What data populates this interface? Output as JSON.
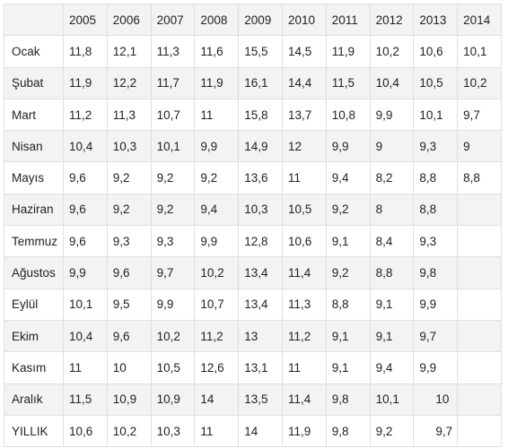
{
  "table": {
    "columns": [
      "",
      "2005",
      "2006",
      "2007",
      "2008",
      "2009",
      "2010",
      "2011",
      "2012",
      "2013",
      "2014"
    ],
    "rows": [
      {
        "month": "Ocak",
        "values": [
          "11,8",
          "12,1",
          "11,3",
          "11,6",
          "15,5",
          "14,5",
          "11,9",
          "10,2",
          "10,6",
          "10,1"
        ]
      },
      {
        "month": "Şubat",
        "values": [
          "11,9",
          "12,2",
          "11,7",
          "11,9",
          "16,1",
          "14,4",
          "11,5",
          "10,4",
          "10,5",
          "10,2"
        ]
      },
      {
        "month": "Mart",
        "values": [
          "11,2",
          "11,3",
          "10,7",
          "11",
          "15,8",
          "13,7",
          "10,8",
          "9,9",
          "10,1",
          "9,7"
        ]
      },
      {
        "month": "Nisan",
        "values": [
          "10,4",
          "10,3",
          "10,1",
          "9,9",
          "14,9",
          "12",
          "9,9",
          "9",
          "9,3",
          "9"
        ]
      },
      {
        "month": "Mayıs",
        "values": [
          "9,6",
          "9,2",
          "9,2",
          "9,2",
          "13,6",
          "11",
          "9,4",
          "8,2",
          "8,8",
          "8,8"
        ]
      },
      {
        "month": "Haziran",
        "values": [
          "9,6",
          "9,2",
          "9,2",
          "9,4",
          "10,3",
          "10,5",
          "9,2",
          "8",
          "8,8",
          ""
        ]
      },
      {
        "month": "Temmuz",
        "values": [
          "9,6",
          "9,3",
          "9,3",
          "9,9",
          "12,8",
          "10,6",
          "9,1",
          "8,4",
          "9,3",
          ""
        ]
      },
      {
        "month": "Ağustos",
        "values": [
          "9,9",
          "9,6",
          "9,7",
          "10,2",
          "13,4",
          "11,4",
          "9,2",
          "8,8",
          "9,8",
          ""
        ]
      },
      {
        "month": "Eylül",
        "values": [
          "10,1",
          "9,5",
          "9,9",
          "10,7",
          "13,4",
          "11,3",
          "8,8",
          "9,1",
          "9,9",
          ""
        ]
      },
      {
        "month": "Ekim",
        "values": [
          "10,4",
          "9,6",
          "10,2",
          "11,2",
          "13",
          "11,2",
          "9,1",
          "9,1",
          "9,7",
          ""
        ]
      },
      {
        "month": "Kasım",
        "values": [
          "11",
          "10",
          "10,5",
          "12,6",
          "13,1",
          "11",
          "9,1",
          "9,4",
          "9,9",
          ""
        ]
      },
      {
        "month": "Aralık",
        "values": [
          "11,5",
          "10,9",
          "10,9",
          "14",
          "13,5",
          "11,4",
          "9,8",
          "10,1",
          "10",
          ""
        ]
      },
      {
        "month": "YILLIK",
        "values": [
          "10,6",
          "10,2",
          "10,3",
          "11",
          "14",
          "11,9",
          "9,8",
          "9,2",
          "9,7",
          ""
        ]
      }
    ]
  },
  "colors": {
    "stripe": "#f3f3f3",
    "border": "#e0e0e0",
    "text": "#222222"
  }
}
